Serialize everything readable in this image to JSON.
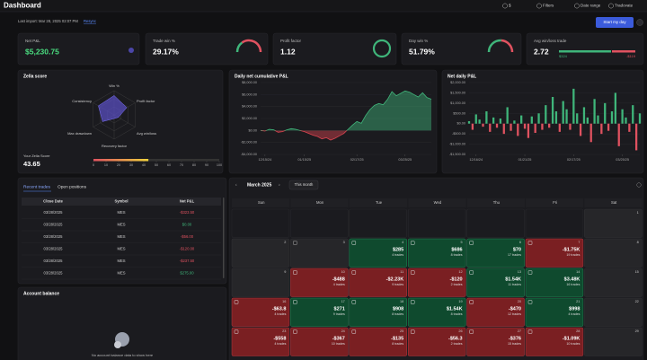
{
  "header": {
    "title": "Dashboard",
    "controls": [
      "$",
      "Filters",
      "Date range",
      "Tradovate"
    ],
    "last_import": "Last import: Mar 28, 2025 02:07 PM",
    "resync": "Resync",
    "start_button": "Start my day"
  },
  "stats": [
    {
      "label": "Net P&L",
      "value": "$5,230.75"
    },
    {
      "label": "Trade win %",
      "value": "29.17%"
    },
    {
      "label": "Profit factor",
      "value": "1.12"
    },
    {
      "label": "Day win %",
      "value": "51.79%"
    },
    {
      "label": "Avg win/loss trade",
      "value": "2.72",
      "win": "$324",
      "loss": "-$119"
    }
  ],
  "zella": {
    "title": "Zella score",
    "axes": [
      "Win %",
      "Profit factor",
      "Avg win/loss",
      "Recovery factor",
      "Max drawdown",
      "Consistency"
    ],
    "score_label": "Your Zella Score",
    "score": 43.65,
    "scale_ticks": [
      0,
      10,
      20,
      30,
      40,
      50,
      60,
      70,
      80,
      90,
      100
    ]
  },
  "cumulative_chart": {
    "type": "area",
    "title": "Daily net cumulative P&L",
    "positive_color": "#3fb57a",
    "negative_color": "#d9434f",
    "values": [
      0,
      -100,
      200,
      100,
      -300,
      -200,
      100,
      300,
      200,
      0,
      -200,
      -500,
      -800,
      -1000,
      -1400,
      -1200,
      -1600,
      -1300,
      -900,
      -500,
      200,
      900,
      1500,
      1200,
      2500,
      3500,
      4200,
      4500,
      4300,
      5200,
      6500,
      5800,
      6200,
      6600,
      6400,
      6000,
      5600,
      6300,
      5500,
      5230.75
    ],
    "xlim": [
      0,
      39
    ],
    "xticks": [
      {
        "value": 1,
        "label": "12/15/24"
      },
      {
        "value": 10,
        "label": "01/15/25"
      },
      {
        "value": 22,
        "label": "02/17/25"
      },
      {
        "value": 33,
        "label": "03/25/25"
      }
    ],
    "ylim": [
      -4000,
      8000
    ],
    "yticks": [
      {
        "value": -4000,
        "label": "-$4,000.00"
      },
      {
        "value": -2000,
        "label": "-$2,000.00"
      },
      {
        "value": 0,
        "label": "$0.00"
      },
      {
        "value": 2000,
        "label": "$2,000.00"
      },
      {
        "value": 4000,
        "label": "$4,000.00"
      },
      {
        "value": 6000,
        "label": "$6,000.00"
      },
      {
        "value": 8000,
        "label": "$8,000.00"
      }
    ]
  },
  "daily_chart": {
    "type": "bar",
    "title": "Net daily P&L",
    "positive_color": "#3fb57a",
    "negative_color": "#e05260",
    "values": [
      120,
      -300,
      450,
      200,
      -150,
      600,
      -400,
      300,
      -200,
      250,
      -500,
      800,
      -350,
      150,
      -600,
      400,
      -250,
      -700,
      350,
      -450,
      500,
      -300,
      900,
      -200,
      1300,
      600,
      -400,
      1100,
      700,
      -300,
      1700,
      500,
      -600,
      800,
      300,
      -900,
      1200,
      400,
      -500,
      1000,
      -350,
      600,
      1500,
      -1100,
      700,
      300,
      -400,
      900,
      -1300,
      500
    ],
    "xlim": [
      0,
      49
    ],
    "xticks": [
      {
        "value": 2,
        "label": "12/16/24"
      },
      {
        "value": 16,
        "label": "01/21/25"
      },
      {
        "value": 30,
        "label": "02/17/25"
      },
      {
        "value": 44,
        "label": "03/25/25"
      }
    ],
    "ylim": [
      -1500,
      2000
    ],
    "yticks": [
      {
        "value": -1500,
        "label": "-$1,500.00"
      },
      {
        "value": -1000,
        "label": "-$1,000.00"
      },
      {
        "value": -500,
        "label": "-$500.00"
      },
      {
        "value": 0,
        "label": "$0.00"
      },
      {
        "value": 500,
        "label": "$500.00"
      },
      {
        "value": 1000,
        "label": "$1,000.00"
      },
      {
        "value": 1500,
        "label": "$1,500.00"
      },
      {
        "value": 2000,
        "label": "$2,000.00"
      }
    ]
  },
  "trades": {
    "tabs": [
      "Recent trades",
      "Open positions"
    ],
    "columns": [
      "Close Date",
      "Symbol",
      "Net P&L"
    ],
    "rows": [
      [
        "03/28/2025",
        "MES",
        "-$323.50"
      ],
      [
        "03/28/2025",
        "MES",
        "$0.00"
      ],
      [
        "03/28/2025",
        "MES",
        "-$56.00"
      ],
      [
        "03/28/2025",
        "MES",
        "-$120.00"
      ],
      [
        "03/28/2025",
        "MES",
        "-$237.50"
      ],
      [
        "03/28/2025",
        "MES",
        "$275.00"
      ]
    ]
  },
  "account": {
    "title": "Account balance",
    "empty_text": "No account balance data to show here"
  },
  "calendar": {
    "month": "March 2025",
    "button": "This month",
    "weekdays": [
      "Sun",
      "Mon",
      "Tue",
      "Wed",
      "Thu",
      "Fri",
      "Sat"
    ],
    "weeks": [
      [
        null,
        null,
        null,
        null,
        null,
        null,
        {
          "day": 1
        }
      ],
      [
        {
          "day": 2
        },
        {
          "day": 3
        },
        {
          "day": 4,
          "pnl": "$285",
          "trades": "4 trades"
        },
        {
          "day": 5,
          "pnl": "$686",
          "trades": "8 trades"
        },
        {
          "day": 6,
          "pnl": "$70",
          "trades": "17 trades"
        },
        {
          "day": 7,
          "pnl": "-$1.75K",
          "trades": "19 trades"
        },
        {
          "day": 8
        }
      ],
      [
        {
          "day": 9
        },
        {
          "day": 10,
          "pnl": "-$488",
          "trades": "4 trades"
        },
        {
          "day": 11,
          "pnl": "-$2.23K",
          "trades": "9 trades"
        },
        {
          "day": 12,
          "pnl": "-$120",
          "trades": "2 trades"
        },
        {
          "day": 13,
          "pnl": "$1.54K",
          "trades": "11 trades"
        },
        {
          "day": 14,
          "pnl": "$3.48K",
          "trades": "16 trades"
        },
        {
          "day": 15
        }
      ],
      [
        {
          "day": 16,
          "pnl": "-$63.8",
          "trades": "4 trades"
        },
        {
          "day": 17,
          "pnl": "$271",
          "trades": "9 trades"
        },
        {
          "day": 18,
          "pnl": "$908",
          "trades": "8 trades"
        },
        {
          "day": 19,
          "pnl": "$1.54K",
          "trades": "8 trades"
        },
        {
          "day": 20,
          "pnl": "-$470",
          "trades": "12 trades"
        },
        {
          "day": 21,
          "pnl": "$998",
          "trades": "4 trades"
        },
        {
          "day": 22
        }
      ],
      [
        {
          "day": 23,
          "pnl": "-$558",
          "trades": "4 trades"
        },
        {
          "day": 24,
          "pnl": "-$367",
          "trades": "10 trades"
        },
        {
          "day": 25,
          "pnl": "-$135",
          "trades": "8 trades"
        },
        {
          "day": 26,
          "pnl": "-$56.3",
          "trades": "2 trades"
        },
        {
          "day": 27,
          "pnl": "-$376",
          "trades": "15 trades"
        },
        {
          "day": 28,
          "pnl": "-$1.09K",
          "trades": "10 trades"
        },
        {
          "day": 29
        }
      ]
    ]
  }
}
